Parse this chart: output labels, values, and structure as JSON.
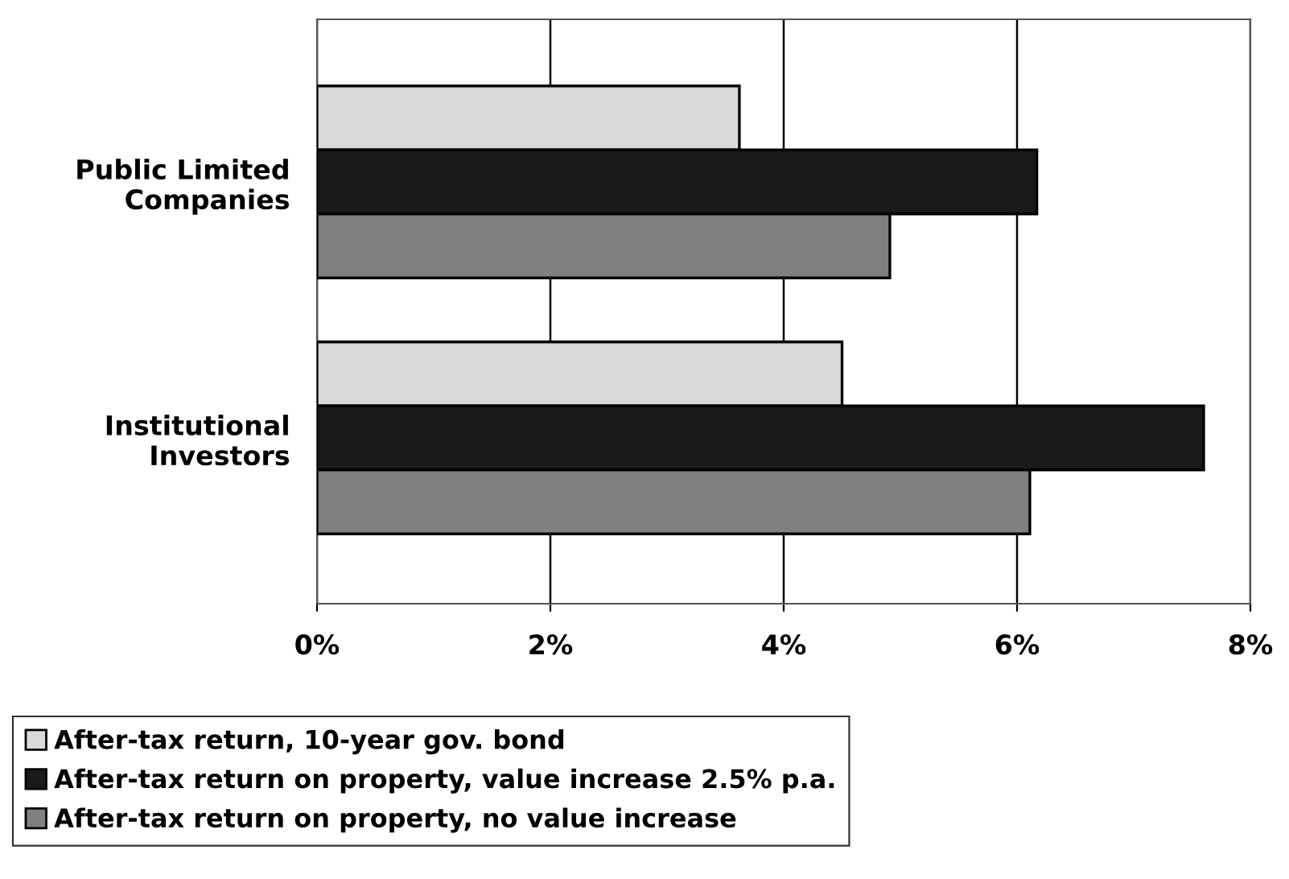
{
  "chart_data": {
    "type": "bar",
    "orientation": "horizontal",
    "categories": [
      "Public Limited Companies",
      "Institutional Investors"
    ],
    "series": [
      {
        "name": "After-tax return, 10-year gov. bond",
        "color": "#d9d9d9",
        "values": [
          3.62,
          4.5
        ]
      },
      {
        "name": "After-tax return on property, value increase 2.5% p.a.",
        "color": "#1a1a1a",
        "values": [
          6.17,
          7.6
        ]
      },
      {
        "name": "After-tax return on property, no value increase",
        "color": "#808080",
        "values": [
          4.91,
          6.11
        ]
      }
    ],
    "xlim": [
      0,
      8
    ],
    "xticks": [
      {
        "value": 0,
        "label": "0%"
      },
      {
        "value": 2,
        "label": "2%"
      },
      {
        "value": 4,
        "label": "4%"
      },
      {
        "value": 6,
        "label": "6%"
      },
      {
        "value": 8,
        "label": "8%"
      }
    ],
    "grid": "x",
    "legend": "bottom"
  }
}
